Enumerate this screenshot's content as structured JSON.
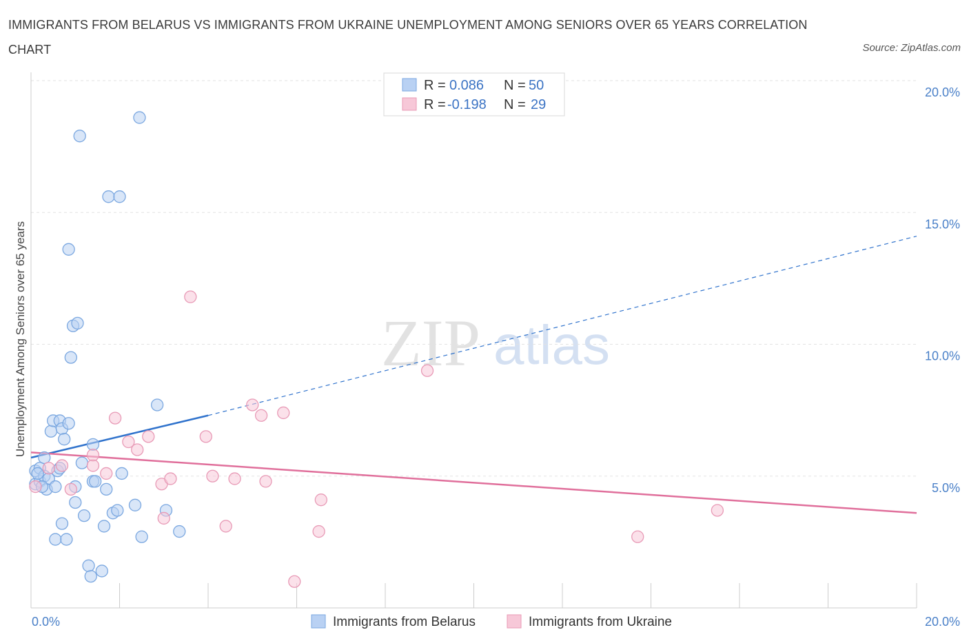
{
  "title": "IMMIGRANTS FROM BELARUS VS IMMIGRANTS FROM UKRAINE UNEMPLOYMENT AMONG SENIORS OVER 65 YEARS CORRELATION CHART",
  "source": "Source: ZipAtlas.com",
  "watermark": {
    "zip": "ZIP",
    "atlas": "atlas"
  },
  "legend": {
    "r_label": "R =",
    "n_label": "N =",
    "rows": [
      {
        "r": "0.086",
        "n": "50"
      },
      {
        "r": "-0.198",
        "n": "29"
      }
    ]
  },
  "chart_data": {
    "type": "scatter",
    "xlabel": "",
    "ylabel": "Unemployment Among Seniors over 65 years",
    "xlim": [
      0,
      20
    ],
    "ylim": [
      0,
      20
    ],
    "y_ticks": [
      {
        "value": 5,
        "label": "5.0%"
      },
      {
        "value": 10,
        "label": "10.0%"
      },
      {
        "value": 15,
        "label": "15.0%"
      },
      {
        "value": 20,
        "label": "20.0%"
      }
    ],
    "x_tick_labels": {
      "min": "0.0%",
      "max": "20.0%"
    },
    "grid": true,
    "series": [
      {
        "name": "Immigrants from Belarus",
        "color": "#7aa7e0",
        "fill": "#b9d1f3",
        "trend": {
          "x0": 0,
          "y0": 5.7,
          "x1": 4.0,
          "y1": 7.3,
          "dash_x1": 20.0,
          "dash_y1": 14.1,
          "color": "#2f72cc"
        },
        "points": [
          [
            0.1,
            5.2
          ],
          [
            0.1,
            4.7
          ],
          [
            0.2,
            5.3
          ],
          [
            0.2,
            4.8
          ],
          [
            0.3,
            5.0
          ],
          [
            0.3,
            5.7
          ],
          [
            0.35,
            4.5
          ],
          [
            0.4,
            4.9
          ],
          [
            0.45,
            6.7
          ],
          [
            0.5,
            7.1
          ],
          [
            0.55,
            2.6
          ],
          [
            0.55,
            4.6
          ],
          [
            0.6,
            5.2
          ],
          [
            0.65,
            7.1
          ],
          [
            0.7,
            3.2
          ],
          [
            0.7,
            6.8
          ],
          [
            0.75,
            6.4
          ],
          [
            0.8,
            2.6
          ],
          [
            0.85,
            7.0
          ],
          [
            0.85,
            13.6
          ],
          [
            0.9,
            9.5
          ],
          [
            0.95,
            10.7
          ],
          [
            1.0,
            4.6
          ],
          [
            1.0,
            4.0
          ],
          [
            1.05,
            10.8
          ],
          [
            1.1,
            17.9
          ],
          [
            1.15,
            5.5
          ],
          [
            1.2,
            3.5
          ],
          [
            1.3,
            1.6
          ],
          [
            1.35,
            1.2
          ],
          [
            1.4,
            4.8
          ],
          [
            1.4,
            6.2
          ],
          [
            1.45,
            4.8
          ],
          [
            1.6,
            1.4
          ],
          [
            1.65,
            3.1
          ],
          [
            1.7,
            4.5
          ],
          [
            1.75,
            15.6
          ],
          [
            1.85,
            3.6
          ],
          [
            1.95,
            3.7
          ],
          [
            2.0,
            15.6
          ],
          [
            2.05,
            5.1
          ],
          [
            2.35,
            3.9
          ],
          [
            2.45,
            18.6
          ],
          [
            2.5,
            2.7
          ],
          [
            2.85,
            7.7
          ],
          [
            3.05,
            3.7
          ],
          [
            3.35,
            2.9
          ],
          [
            0.15,
            5.1
          ],
          [
            0.25,
            4.6
          ],
          [
            0.65,
            5.3
          ]
        ]
      },
      {
        "name": "Immigrants from Ukraine",
        "color": "#e89ab6",
        "fill": "#f7c8d8",
        "trend": {
          "x0": 0,
          "y0": 5.9,
          "x1": 20.0,
          "y1": 3.6,
          "color": "#e06f9b"
        },
        "points": [
          [
            0.1,
            4.6
          ],
          [
            0.4,
            5.3
          ],
          [
            0.7,
            5.4
          ],
          [
            0.9,
            4.5
          ],
          [
            1.4,
            5.4
          ],
          [
            1.4,
            5.8
          ],
          [
            1.7,
            5.1
          ],
          [
            1.9,
            7.2
          ],
          [
            2.2,
            6.3
          ],
          [
            2.4,
            6.0
          ],
          [
            2.65,
            6.5
          ],
          [
            2.95,
            4.7
          ],
          [
            3.0,
            3.4
          ],
          [
            3.15,
            4.9
          ],
          [
            3.6,
            11.8
          ],
          [
            3.95,
            6.5
          ],
          [
            4.1,
            5.0
          ],
          [
            4.4,
            3.1
          ],
          [
            4.6,
            4.9
          ],
          [
            5.0,
            7.7
          ],
          [
            5.2,
            7.3
          ],
          [
            5.3,
            4.8
          ],
          [
            5.7,
            7.4
          ],
          [
            5.95,
            1.0
          ],
          [
            6.5,
            2.9
          ],
          [
            6.55,
            4.1
          ],
          [
            8.95,
            9.0
          ],
          [
            13.7,
            2.7
          ],
          [
            15.5,
            3.7
          ]
        ]
      }
    ]
  }
}
